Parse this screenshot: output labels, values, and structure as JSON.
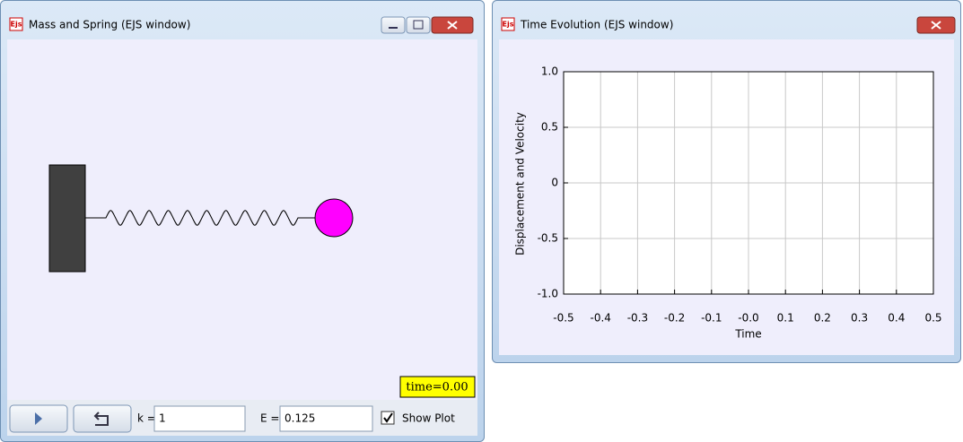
{
  "left_window": {
    "icon": "Ejs",
    "title": "Mass and Spring (EJS window)",
    "time_label": "time=0.00",
    "controls": {
      "k_label": "k =",
      "k_value": "1",
      "e_label": "E =",
      "e_value": "0.125",
      "checkbox": "Show Plot"
    }
  },
  "right_window": {
    "icon": "Ejs",
    "title": "Time Evolution (EJS window)"
  },
  "chart_data": {
    "type": "line",
    "xlabel": "Time",
    "ylabel": "Displacement and Velocity",
    "series": [],
    "grid": true,
    "xlim": [
      -0.5,
      0.5
    ],
    "xticks": [
      -0.5,
      -0.4,
      -0.3,
      -0.2,
      -0.1,
      {
        "value": 0,
        "label": "-0.0"
      },
      0.1,
      0.2,
      0.3,
      0.4,
      0.5
    ],
    "ylim": [
      -1,
      1
    ],
    "yticks": [
      {
        "value": -1,
        "label": "-1.0"
      },
      -0.5,
      0,
      0.5,
      {
        "value": 1,
        "label": "1.0"
      }
    ]
  }
}
